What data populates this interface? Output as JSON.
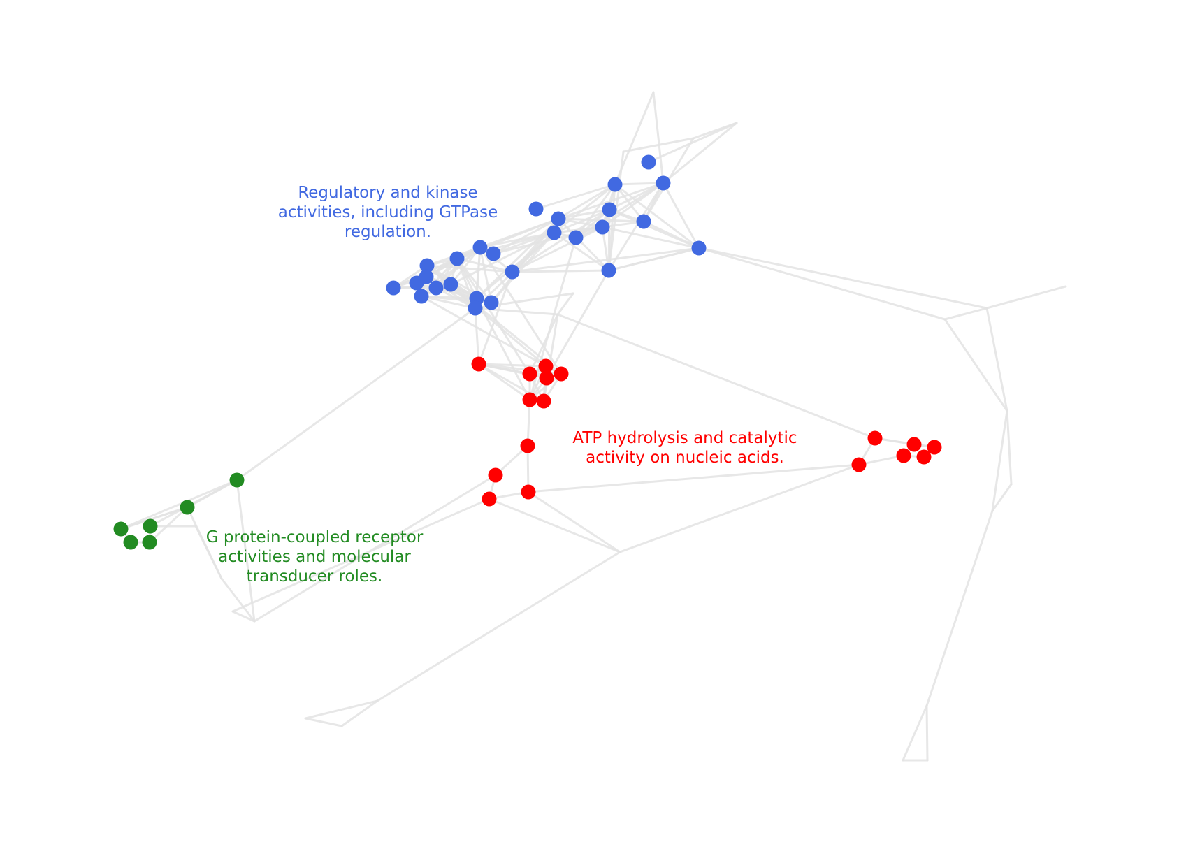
{
  "colors": {
    "edge": "#e3e3e3",
    "blue": "#4169e1",
    "red": "#ff0000",
    "green": "#228b22"
  },
  "clusters": [
    {
      "id": "blue",
      "color": "#4169e1",
      "label": "Regulatory and kinase\nactivities, including GTPase\nregulation."
    },
    {
      "id": "red",
      "color": "#ff0000",
      "label": "ATP hydrolysis and catalytic\nactivity on nucleic acids."
    },
    {
      "id": "green",
      "color": "#228b22",
      "label": "G protein-coupled receptor\nactivities and molecular\ntransducer roles."
    }
  ]
}
